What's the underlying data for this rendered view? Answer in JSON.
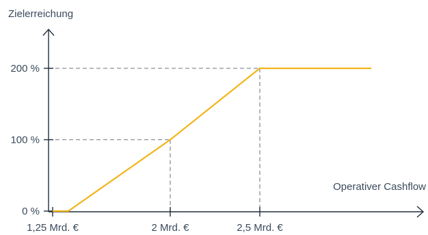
{
  "chart_data": {
    "type": "line",
    "ylabel": "Zielerreichung",
    "xlabel": "Operativer Cashflow",
    "x_ticks": [
      {
        "value": 1.25,
        "label": "1,25 Mrd. €"
      },
      {
        "value": 2.0,
        "label": "2 Mrd. €"
      },
      {
        "value": 2.5,
        "label": "2,5 Mrd. €"
      }
    ],
    "y_ticks": [
      {
        "value": 0,
        "label": "0 %"
      },
      {
        "value": 100,
        "label": "100 %"
      },
      {
        "value": 200,
        "label": "200 %"
      }
    ],
    "xlim": [
      1.25,
      3.0
    ],
    "ylim": [
      0,
      230
    ],
    "series": [
      {
        "color": "#f2b418",
        "points": [
          [
            1.25,
            0
          ],
          [
            1.35,
            0
          ],
          [
            2.0,
            100
          ],
          [
            2.5,
            200
          ],
          [
            2.81,
            200
          ]
        ]
      }
    ],
    "reference_lines": [
      {
        "x": 2.0,
        "y": 100
      },
      {
        "x": 2.5,
        "y": 200
      }
    ],
    "grid": false
  },
  "colors": {
    "axis": "#1f2d3d",
    "line": "#f2b418",
    "dashed": "#8a8f96",
    "text": "#3a4a5c"
  }
}
